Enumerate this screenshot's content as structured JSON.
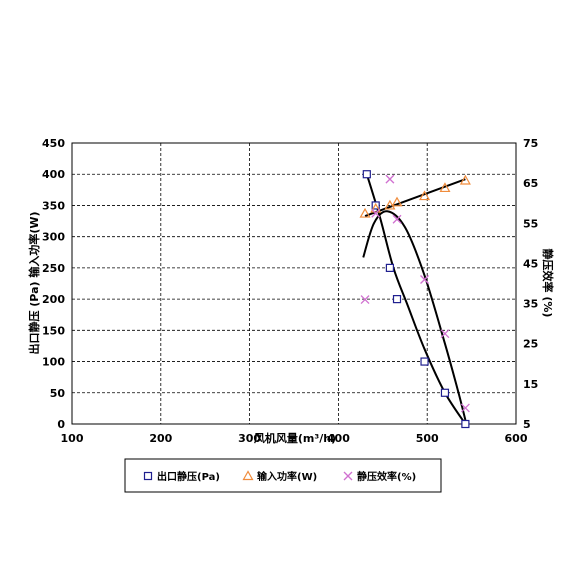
{
  "chart_data": {
    "type": "scatter",
    "xlabel": "风机风量(m³/h)",
    "ylabel_left": "出口静压 (Pa) 输入功率(W)",
    "ylabel_right": "静压效率 (%)",
    "xlim": [
      100,
      600
    ],
    "xticks": [
      "100",
      "200",
      "300",
      "400",
      "500",
      "600"
    ],
    "ylim_left": [
      0,
      450
    ],
    "yticks_left": [
      "0",
      "50",
      "100",
      "150",
      "200",
      "250",
      "300",
      "350",
      "400",
      "450"
    ],
    "ylim_right": [
      5,
      75
    ],
    "yticks_right": [
      "5",
      "15",
      "25",
      "35",
      "45",
      "55",
      "65",
      "75"
    ],
    "grid": true,
    "legend_position": "bottom",
    "series": [
      {
        "name": "出口静压(Pa)",
        "marker": "square",
        "color": "#1f1f8f",
        "axis": "left",
        "x": [
          432,
          442,
          458,
          466,
          497,
          520,
          543
        ],
        "y": [
          400,
          350,
          250,
          200,
          100,
          50,
          0
        ],
        "fit": [
          [
            432,
            400
          ],
          [
            447,
            330
          ],
          [
            462,
            250
          ],
          [
            478,
            190
          ],
          [
            497,
            120
          ],
          [
            520,
            50
          ],
          [
            543,
            0
          ]
        ]
      },
      {
        "name": "输入功率(W)",
        "marker": "triangle",
        "color": "#f08c3c",
        "axis": "left",
        "x": [
          430,
          442,
          458,
          466,
          497,
          520,
          543
        ],
        "y": [
          337,
          345,
          350,
          355,
          365,
          378,
          390
        ],
        "fit": [
          [
            430,
            333
          ],
          [
            543,
            392
          ]
        ]
      },
      {
        "name": "静压效率(%)",
        "marker": "x",
        "color": "#d070d0",
        "axis": "right",
        "x": [
          430,
          442,
          458,
          466,
          497,
          520,
          543
        ],
        "y": [
          36,
          57.5,
          66,
          56,
          41,
          27.5,
          9
        ],
        "fit": [
          [
            428,
            46.5
          ],
          [
            440,
            55
          ],
          [
            455,
            58
          ],
          [
            475,
            54
          ],
          [
            497,
            42
          ],
          [
            520,
            25
          ],
          [
            535,
            13
          ],
          [
            543,
            6
          ]
        ]
      }
    ]
  }
}
